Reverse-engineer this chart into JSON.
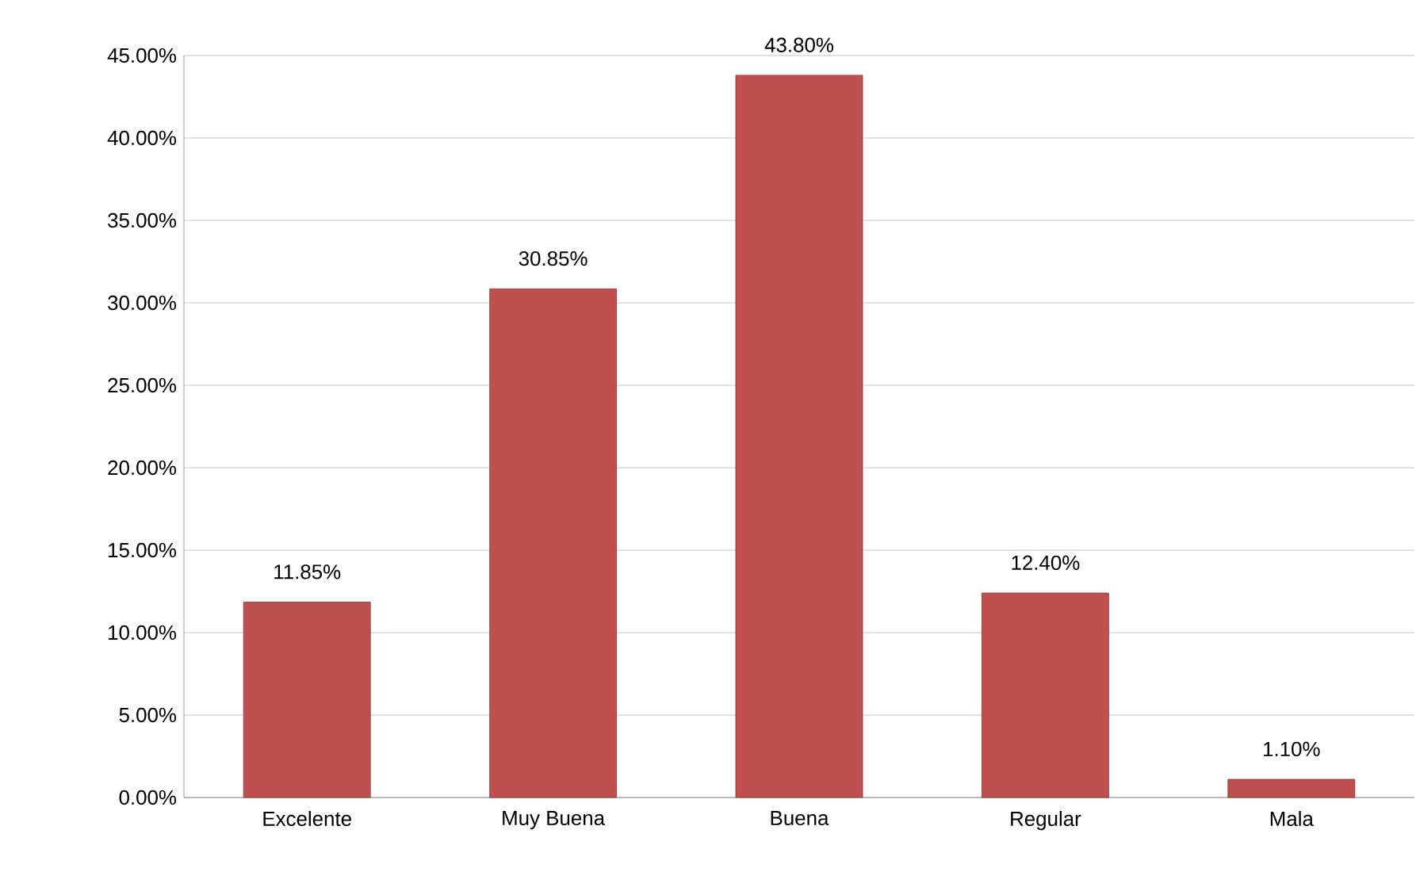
{
  "chart_data": {
    "type": "bar",
    "categories": [
      "Excelente",
      "Muy Buena",
      "Buena",
      "Regular",
      "Mala"
    ],
    "values": [
      11.85,
      30.85,
      43.8,
      12.4,
      1.1
    ],
    "value_labels": [
      "11.85%",
      "30.85%",
      "43.80%",
      "12.40%",
      "1.10%"
    ],
    "color": "#c0504d",
    "ylim": [
      0,
      45
    ],
    "yticks": [
      {
        "value": 0,
        "label": "0.00%"
      },
      {
        "value": 5,
        "label": "5.00%"
      },
      {
        "value": 10,
        "label": "10.00%"
      },
      {
        "value": 15,
        "label": "15.00%"
      },
      {
        "value": 20,
        "label": "20.00%"
      },
      {
        "value": 25,
        "label": "25.00%"
      },
      {
        "value": 30,
        "label": "30.00%"
      },
      {
        "value": 35,
        "label": "35.00%"
      },
      {
        "value": 40,
        "label": "40.00%"
      },
      {
        "value": 45,
        "label": "45.00%"
      }
    ],
    "grid": "y"
  }
}
